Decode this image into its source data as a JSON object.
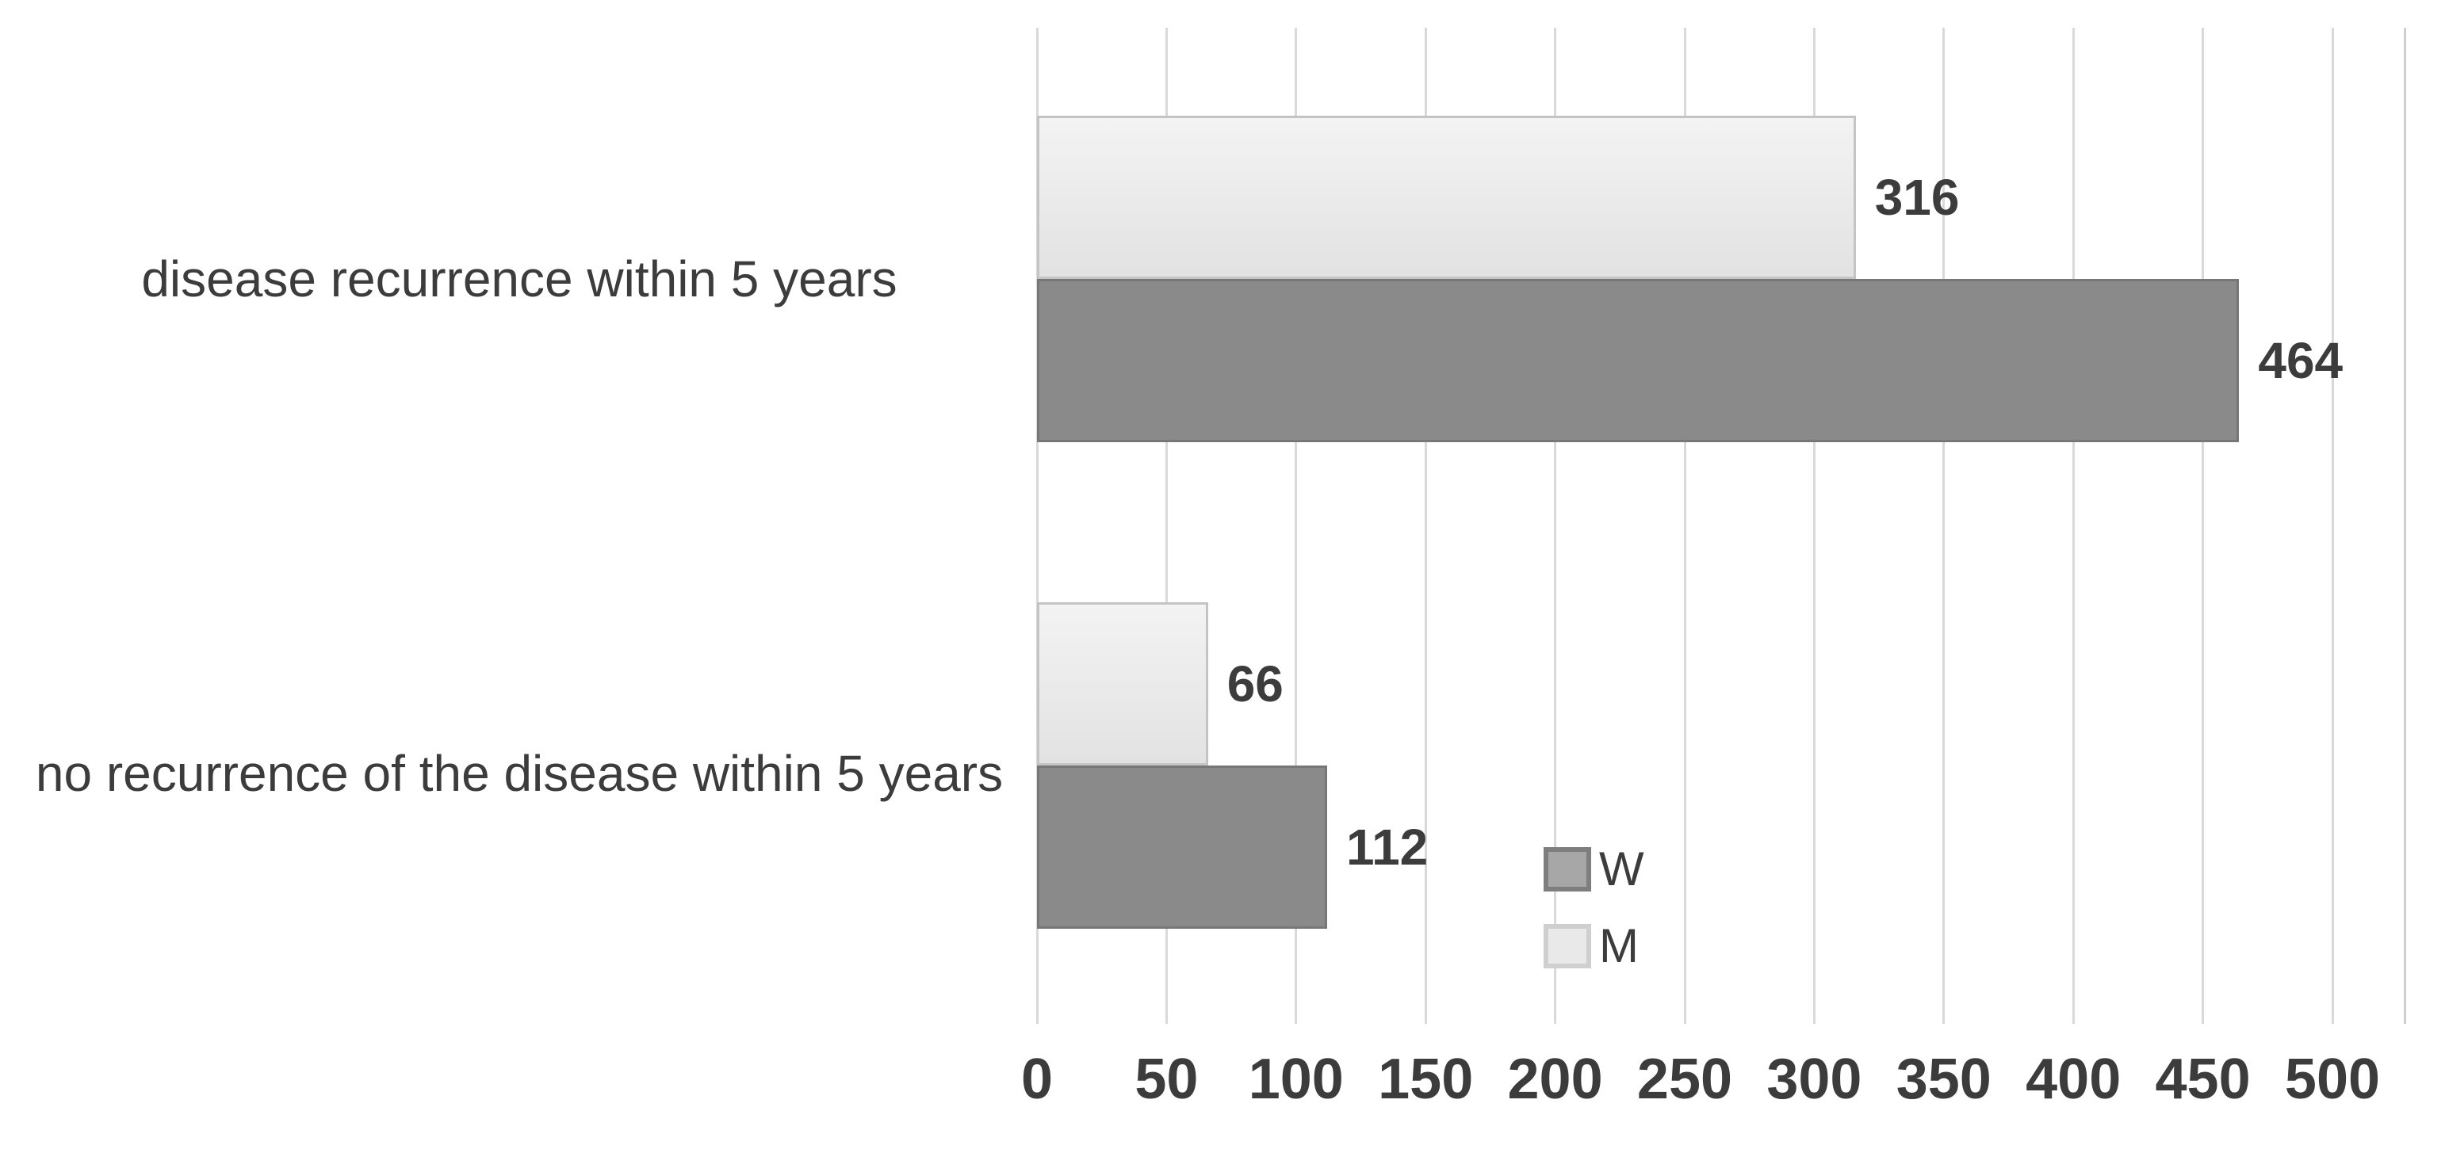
{
  "chart_data": {
    "type": "bar",
    "orientation": "horizontal",
    "title": "",
    "xlabel": "",
    "ylabel": "",
    "categories": [
      "disease recurrence within 5 years",
      "no recurrence of the disease within 5 years"
    ],
    "series": [
      {
        "name": "W",
        "values": [
          464,
          112
        ],
        "fill": "#8a8a8a",
        "border": "#777777",
        "swatch_fill": "#a7a7a7",
        "swatch_border": "#7e7e7e"
      },
      {
        "name": "M",
        "values": [
          316,
          66
        ],
        "fill": "#ebebeb",
        "fill_gradient_top": "#f3f3f3",
        "fill_gradient_bottom": "#e2e2e2",
        "border": "#c4c4c4",
        "swatch_fill": "#e9e9e9",
        "swatch_border": "#cfcfcf"
      }
    ],
    "bar_order_top_to_bottom": [
      "M",
      "W"
    ],
    "show_data_labels": true,
    "xlim": [
      0,
      500
    ],
    "xticks": [
      0,
      50,
      100,
      150,
      200,
      250,
      300,
      350,
      400,
      450,
      500
    ],
    "grid": "vertical",
    "gridline_color": "#d9d9d9",
    "plot_border_color": "#cfcfcf",
    "legend": {
      "position": "inside-bottom-center",
      "entries": [
        "W",
        "M"
      ]
    },
    "text_color": "#3c3c3c",
    "background": "#ffffff"
  }
}
